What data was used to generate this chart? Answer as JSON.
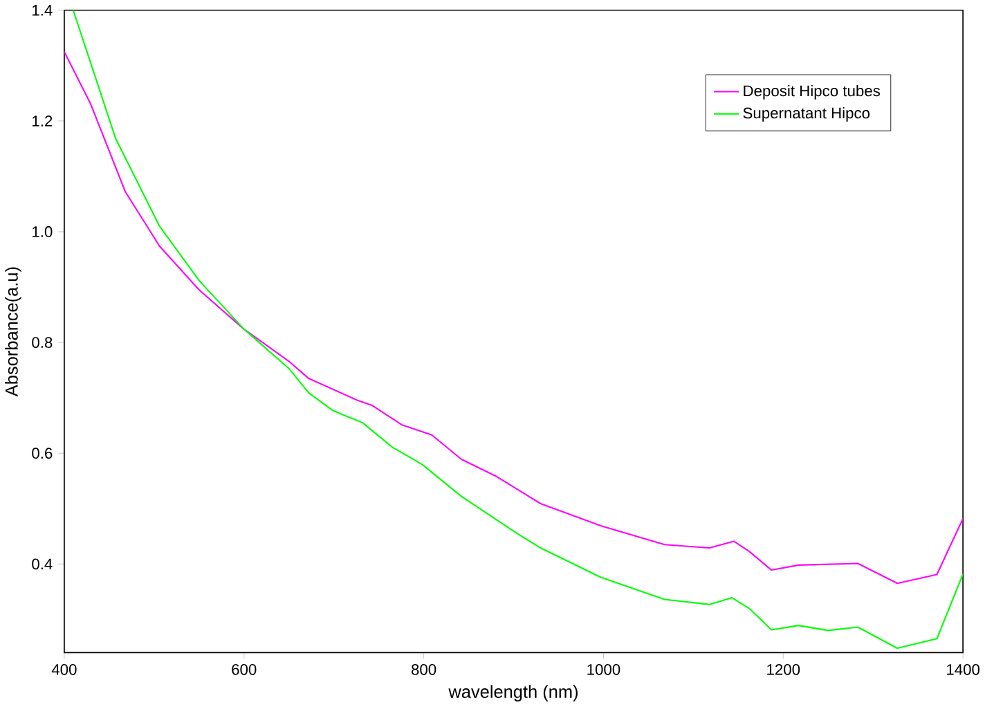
{
  "chart_data": {
    "type": "line",
    "xlabel": "wavelength (nm)",
    "ylabel": "Absorbance(a.u)",
    "xlim": [
      400,
      1400
    ],
    "ylim": [
      0.24,
      1.4
    ],
    "xticks": [
      400,
      600,
      800,
      1000,
      1200,
      1400
    ],
    "yticks": [
      0.4,
      0.6,
      0.8,
      {
        "value": 1.0,
        "label": "1.0"
      },
      1.2,
      1.4
    ],
    "legend": "top right",
    "grid": false,
    "marker": "none",
    "line_style": "solid",
    "series": [
      {
        "name": "Deposit Hipco tubes",
        "color": "#ff00ff",
        "x": [
          400,
          429,
          468,
          506,
          550,
          600,
          650,
          672,
          727,
          743,
          776,
          809,
          842,
          881,
          903,
          930,
          997,
          1068,
          1118,
          1145,
          1162,
          1187,
          1217,
          1283,
          1327,
          1371,
          1400
        ],
        "values": [
          1.325,
          1.232,
          1.072,
          0.974,
          0.895,
          0.824,
          0.766,
          0.735,
          0.695,
          0.686,
          0.651,
          0.633,
          0.589,
          0.558,
          0.536,
          0.509,
          0.469,
          0.435,
          0.429,
          0.441,
          0.423,
          0.389,
          0.398,
          0.401,
          0.365,
          0.381,
          0.482
        ]
      },
      {
        "name": "Supernatant Hipco",
        "color": "#00ff00",
        "x": [
          410,
          457,
          506,
          550,
          600,
          650,
          672,
          699,
          732,
          765,
          798,
          842,
          903,
          930,
          997,
          1068,
          1118,
          1143,
          1162,
          1187,
          1217,
          1250,
          1283,
          1327,
          1371,
          1400
        ],
        "values": [
          1.4,
          1.169,
          1.01,
          0.912,
          0.824,
          0.753,
          0.709,
          0.677,
          0.655,
          0.611,
          0.58,
          0.522,
          0.456,
          0.429,
          0.376,
          0.336,
          0.327,
          0.339,
          0.32,
          0.281,
          0.289,
          0.28,
          0.286,
          0.248,
          0.265,
          0.382
        ]
      }
    ]
  }
}
